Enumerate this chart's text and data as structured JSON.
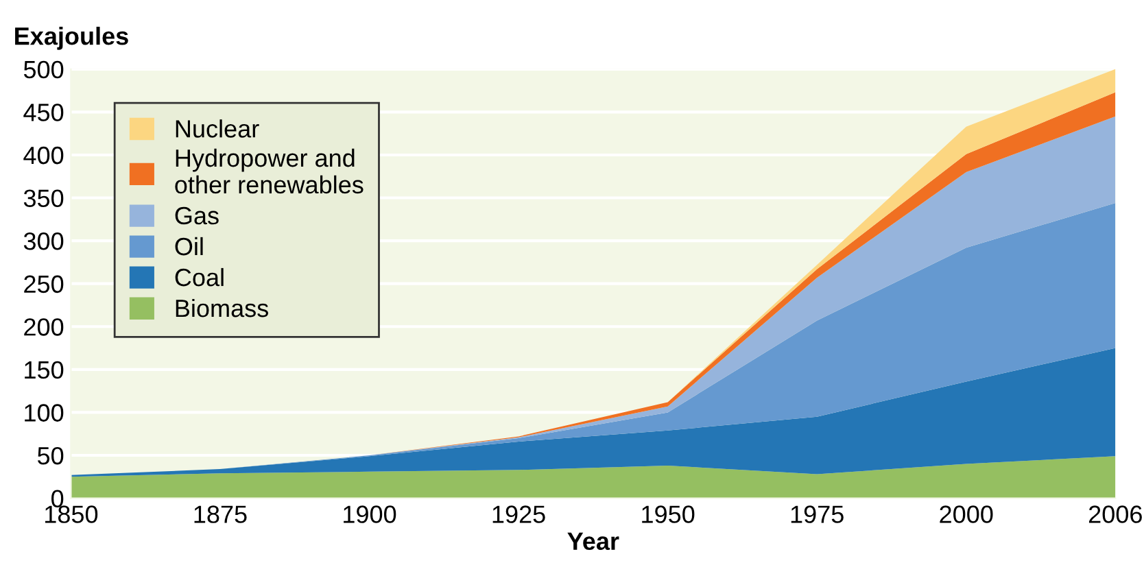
{
  "chart_data": {
    "type": "area",
    "stacked": true,
    "ylabel": "Exajoules",
    "xlabel": "Year",
    "categories": [
      "1850",
      "1875",
      "1900",
      "1925",
      "1950",
      "1975",
      "2000",
      "2006"
    ],
    "series": [
      {
        "name": "Biomass",
        "color": "#95bf61",
        "values": [
          25,
          29,
          31,
          33,
          38,
          28,
          40,
          49
        ]
      },
      {
        "name": "Coal",
        "color": "#2476b5",
        "values": [
          2,
          5,
          18,
          33,
          41,
          67,
          96,
          126
        ]
      },
      {
        "name": "Oil",
        "color": "#6599d0",
        "values": [
          0,
          0,
          1,
          4,
          21,
          112,
          156,
          169
        ]
      },
      {
        "name": "Gas",
        "color": "#96b4dc",
        "values": [
          0,
          0,
          0,
          1,
          7,
          50,
          88,
          101
        ]
      },
      {
        "name": "Hydropower and\nother renewables",
        "color": "#f07022",
        "values": [
          0,
          0,
          0,
          1,
          5,
          10,
          21,
          28
        ]
      },
      {
        "name": "Nuclear",
        "color": "#fcd681",
        "values": [
          0,
          0,
          0,
          0,
          0,
          5,
          32,
          27
        ]
      }
    ],
    "ylim": [
      0,
      500
    ],
    "yticks": [
      0,
      50,
      100,
      150,
      200,
      250,
      300,
      350,
      400,
      450,
      500
    ],
    "grid": "y",
    "legend": "top left"
  }
}
